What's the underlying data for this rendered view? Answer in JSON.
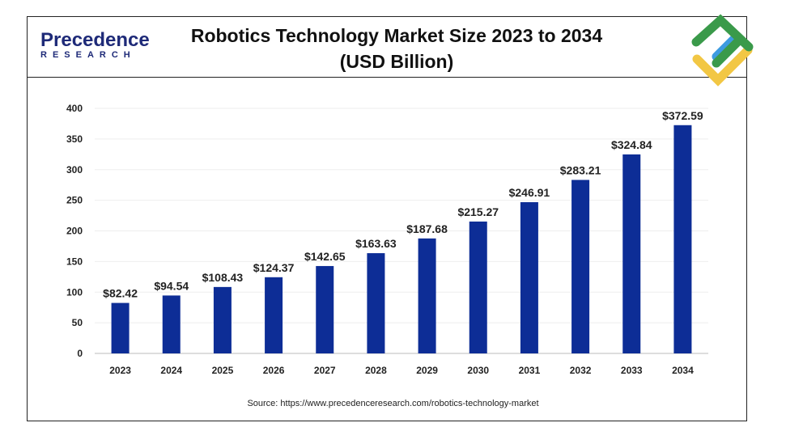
{
  "brand": {
    "name": "Precedence",
    "sub": "RESEARCH"
  },
  "source": "Source: https://www.precedenceresearch.com/robotics-technology-market",
  "colors": {
    "bar": "#0d2d96",
    "logo_green": "#3a9a4a",
    "logo_yellow": "#f2c744",
    "logo_blue": "#3d9be0"
  },
  "chart_data": {
    "type": "bar",
    "title": "Robotics Technology Market Size 2023 to 2034",
    "subtitle": "(USD Billion)",
    "categories": [
      "2023",
      "2024",
      "2025",
      "2026",
      "2027",
      "2028",
      "2029",
      "2030",
      "2031",
      "2032",
      "2033",
      "2034"
    ],
    "values": [
      82.42,
      94.54,
      108.43,
      124.37,
      142.65,
      163.63,
      187.68,
      215.27,
      246.91,
      283.21,
      324.84,
      372.59
    ],
    "labels": [
      "$82.42",
      "$94.54",
      "$108.43",
      "$124.37",
      "$142.65",
      "$163.63",
      "$187.68",
      "$215.27",
      "$246.91",
      "$283.21",
      "$324.84",
      "$372.59"
    ],
    "ylim": [
      0,
      400
    ],
    "yticks": [
      "0",
      "50",
      "100",
      "150",
      "200",
      "250",
      "300",
      "350",
      "400"
    ],
    "grid": true
  }
}
